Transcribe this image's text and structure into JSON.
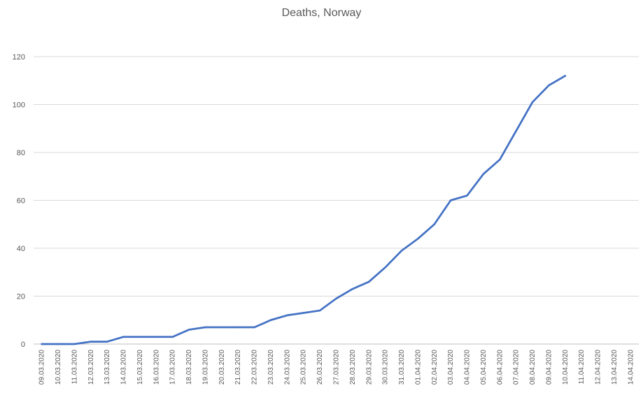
{
  "chart_data": {
    "type": "line",
    "title": "Deaths, Norway",
    "xlabel": "",
    "ylabel": "",
    "ylim": [
      0,
      120
    ],
    "yticks": [
      0,
      20,
      40,
      60,
      80,
      100,
      120
    ],
    "grid": true,
    "color": "#4472c4",
    "categories": [
      "09.03.2020",
      "10.03.2020",
      "11.03.2020",
      "12.03.2020",
      "13.03.2020",
      "14.03.2020",
      "15.03.2020",
      "16.03.2020",
      "17.03.2020",
      "18.03.2020",
      "19.03.2020",
      "20.03.2020",
      "21.03.2020",
      "22.03.2020",
      "23.03.2020",
      "24.03.2020",
      "25.03.2020",
      "26.03.2020",
      "27.03.2020",
      "28.03.2020",
      "29.03.2020",
      "30.03.2020",
      "31.03.2020",
      "01.04.2020",
      "02.04.2020",
      "03.04.2020",
      "04.04.2020",
      "05.04.2020",
      "06.04.2020",
      "07.04.2020",
      "08.04.2020",
      "09.04.2020",
      "10.04.2020",
      "11.04.2020",
      "12.04.2020",
      "13.04.2020",
      "14.04.2020"
    ],
    "series": [
      {
        "values": [
          0,
          0,
          0,
          1,
          1,
          3,
          3,
          3,
          3,
          6,
          7,
          7,
          7,
          7,
          10,
          12,
          13,
          14,
          19,
          23,
          26,
          32,
          39,
          44,
          50,
          60,
          62,
          71,
          77,
          89,
          101,
          108,
          112,
          null,
          null,
          null,
          null
        ]
      }
    ]
  }
}
